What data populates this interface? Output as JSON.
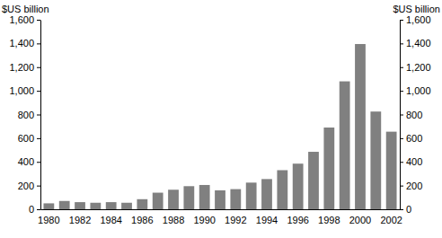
{
  "chart_data": {
    "type": "bar",
    "y_label": "$US billion",
    "y2_label": "$US billion",
    "categories": [
      "1980",
      null,
      "1982",
      null,
      "1984",
      null,
      "1986",
      null,
      "1988",
      null,
      "1990",
      null,
      "1992",
      null,
      "1994",
      null,
      "1996",
      null,
      "1998",
      null,
      "2000",
      null,
      "2002"
    ],
    "values": [
      50,
      70,
      60,
      55,
      60,
      55,
      85,
      140,
      165,
      195,
      205,
      160,
      170,
      225,
      255,
      330,
      385,
      485,
      690,
      1080,
      1395,
      825,
      655
    ],
    "color": "#808080",
    "ylim": [
      0,
      1600
    ],
    "yticks": [
      0,
      200,
      400,
      600,
      800,
      {
        "value": 1000,
        "label": "1,000"
      },
      {
        "value": 1200,
        "label": "1,200"
      },
      {
        "value": 1400,
        "label": "1,400"
      },
      {
        "value": 1600,
        "label": "1,600"
      }
    ],
    "y2lim": [
      0,
      1600
    ],
    "y2ticks": [
      0,
      200,
      400,
      600,
      800,
      {
        "value": 1000,
        "label": "1,000"
      },
      {
        "value": 1200,
        "label": "1,200"
      },
      {
        "value": 1400,
        "label": "1,400"
      },
      {
        "value": 1600,
        "label": "1,600"
      }
    ],
    "grid": false
  }
}
